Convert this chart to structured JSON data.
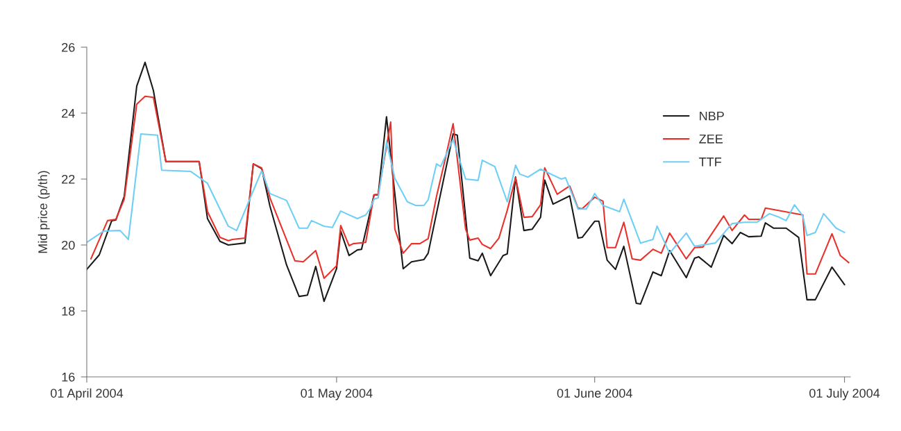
{
  "chart_data": {
    "type": "line",
    "ylabel": "Mid price (p/th)",
    "xlim": [
      "2004-04-01",
      "2004-07-01T17:00"
    ],
    "xticks": [
      {
        "value": "2004-04-01",
        "label": "01 April 2004"
      },
      {
        "value": "2004-05-01",
        "label": "01 May 2004"
      },
      {
        "value": "2004-06-01",
        "label": "01 June 2004"
      },
      {
        "value": "2004-07-01",
        "label": "01 July 2004"
      }
    ],
    "ylim": [
      16,
      26
    ],
    "yticks": [
      16,
      18,
      20,
      22,
      24,
      26
    ],
    "grid": false,
    "legend": "top right",
    "marker": "none",
    "line_style": "solid",
    "series": [
      {
        "name": "NBP",
        "color": "#1a1a1a",
        "x": [
          "2004-04-01",
          "2004-04-02T12:00",
          "2004-04-04",
          "2004-04-04T12:00",
          "2004-04-05T12:00",
          "2004-04-07",
          "2004-04-08",
          "2004-04-09",
          "2004-04-10T12:00",
          "2004-04-14T12:00",
          "2004-04-15T12:00",
          "2004-04-17",
          "2004-04-18",
          "2004-04-20",
          "2004-04-21",
          "2004-04-22",
          "2004-04-23",
          "2004-04-25",
          "2004-04-26T12:00",
          "2004-04-27T12:00",
          "2004-04-28T12:00",
          "2004-04-29T12:00",
          "2004-05-01",
          "2004-05-01T12:00",
          "2004-05-02T12:00",
          "2004-05-03T12:00",
          "2004-05-04",
          "2004-05-05T12:00",
          "2004-05-06",
          "2004-05-07",
          "2004-05-08T12:00",
          "2004-05-09",
          "2004-05-10",
          "2004-05-11T12:00",
          "2004-05-12",
          "2004-05-15",
          "2004-05-15T12:00",
          "2004-05-17",
          "2004-05-18",
          "2004-05-18T12:00",
          "2004-05-19T12:00",
          "2004-05-21",
          "2004-05-21T12:00",
          "2004-05-22T12:00",
          "2004-05-23T12:00",
          "2004-05-24T12:00",
          "2004-05-25T12:00",
          "2004-05-26",
          "2004-05-27",
          "2004-05-29",
          "2004-05-30",
          "2004-05-30T12:00",
          "2004-06-01",
          "2004-06-01T12:00",
          "2004-06-02T12:00",
          "2004-06-03T12:00",
          "2004-06-04T12:00",
          "2004-06-06",
          "2004-06-06T12:00",
          "2004-06-08",
          "2004-06-09",
          "2004-06-10",
          "2004-06-12",
          "2004-06-13",
          "2004-06-13T12:00",
          "2004-06-15",
          "2004-06-16T12:00",
          "2004-06-17T12:00",
          "2004-06-18T12:00",
          "2004-06-19T12:00",
          "2004-06-21",
          "2004-06-21T12:00",
          "2004-06-22T12:00",
          "2004-06-24",
          "2004-06-25T12:00",
          "2004-06-26T12:00",
          "2004-06-27T12:00",
          "2004-06-29T12:00",
          "2004-07-01"
        ],
        "values": [
          19.26,
          19.7,
          20.74,
          20.76,
          21.47,
          24.82,
          25.54,
          24.69,
          22.53,
          22.53,
          20.8,
          20.11,
          20.0,
          20.06,
          22.46,
          22.32,
          21.18,
          19.39,
          18.44,
          18.48,
          19.35,
          18.29,
          19.28,
          20.42,
          19.68,
          19.85,
          19.87,
          21.52,
          21.52,
          23.89,
          20.38,
          19.28,
          19.49,
          19.56,
          19.75,
          23.37,
          23.33,
          19.6,
          19.52,
          19.75,
          19.07,
          19.68,
          19.73,
          22.06,
          20.44,
          20.48,
          20.84,
          21.97,
          21.24,
          21.49,
          20.21,
          20.23,
          20.72,
          20.72,
          19.54,
          19.26,
          19.96,
          18.23,
          18.21,
          19.18,
          19.07,
          19.83,
          19.01,
          19.6,
          19.64,
          19.33,
          20.29,
          20.04,
          20.38,
          20.25,
          20.27,
          20.67,
          20.51,
          20.51,
          20.23,
          18.34,
          18.34,
          19.33,
          18.8
        ]
      },
      {
        "name": "ZEE",
        "color": "#e8312a",
        "x": [
          "2004-04-01T12:00",
          "2004-04-03T12:00",
          "2004-04-04T12:00",
          "2004-04-05T12:00",
          "2004-04-07",
          "2004-04-08",
          "2004-04-09",
          "2004-04-10T12:00",
          "2004-04-14T12:00",
          "2004-04-15T12:00",
          "2004-04-17",
          "2004-04-18",
          "2004-04-18T12:00",
          "2004-04-20",
          "2004-04-21",
          "2004-04-22",
          "2004-04-23",
          "2004-04-26",
          "2004-04-27",
          "2004-04-28T12:00",
          "2004-04-29T12:00",
          "2004-05-01",
          "2004-05-01T12:00",
          "2004-05-02T12:00",
          "2004-05-03",
          "2004-05-04T12:00",
          "2004-05-05T12:00",
          "2004-05-06",
          "2004-05-07T12:00",
          "2004-05-08",
          "2004-05-09",
          "2004-05-10",
          "2004-05-11",
          "2004-05-12",
          "2004-05-13",
          "2004-05-14",
          "2004-05-15",
          "2004-05-16T12:00",
          "2004-05-17",
          "2004-05-18",
          "2004-05-18T12:00",
          "2004-05-19T12:00",
          "2004-05-20T12:00",
          "2004-05-21T12:00",
          "2004-05-22T12:00",
          "2004-05-23T12:00",
          "2004-05-24T12:00",
          "2004-05-25T12:00",
          "2004-05-26",
          "2004-05-27T12:00",
          "2004-05-29",
          "2004-05-30",
          "2004-05-30T12:00",
          "2004-06-01",
          "2004-06-02",
          "2004-06-02T12:00",
          "2004-06-03T12:00",
          "2004-06-04T12:00",
          "2004-06-05T12:00",
          "2004-06-06T12:00",
          "2004-06-08",
          "2004-06-09",
          "2004-06-10",
          "2004-06-12",
          "2004-06-13",
          "2004-06-14",
          "2004-06-16T12:00",
          "2004-06-17T12:00",
          "2004-06-19",
          "2004-06-19T12:00",
          "2004-06-21",
          "2004-06-21T12:00",
          "2004-06-26",
          "2004-06-26T12:00",
          "2004-06-27T12:00",
          "2004-06-29T12:00",
          "2004-06-30T12:00",
          "2004-07-01T12:00"
        ],
        "values": [
          19.58,
          20.74,
          20.78,
          21.39,
          24.27,
          24.51,
          24.48,
          22.53,
          22.53,
          21.01,
          20.23,
          20.13,
          20.17,
          20.21,
          22.46,
          22.34,
          21.43,
          19.52,
          19.49,
          19.83,
          18.99,
          19.37,
          20.59,
          19.98,
          20.04,
          20.08,
          21.52,
          21.54,
          23.73,
          20.48,
          19.75,
          20.04,
          20.04,
          20.19,
          21.47,
          22.55,
          23.68,
          20.48,
          20.15,
          20.21,
          20.02,
          19.89,
          20.21,
          21.05,
          22.04,
          20.84,
          20.86,
          21.22,
          22.34,
          21.54,
          21.79,
          21.12,
          21.1,
          21.45,
          21.33,
          19.92,
          19.92,
          20.69,
          19.58,
          19.54,
          19.87,
          19.75,
          20.36,
          19.58,
          19.92,
          19.94,
          20.88,
          20.44,
          20.91,
          20.78,
          20.78,
          21.12,
          20.91,
          19.12,
          19.12,
          20.34,
          19.68,
          19.47
        ]
      },
      {
        "name": "TTF",
        "color": "#6ecff6",
        "x": [
          "2004-04-01",
          "2004-04-03",
          "2004-04-05",
          "2004-04-06",
          "2004-04-07T12:00",
          "2004-04-09T12:00",
          "2004-04-10",
          "2004-04-13T12:00",
          "2004-04-15T12:00",
          "2004-04-18",
          "2004-04-19",
          "2004-04-22",
          "2004-04-23",
          "2004-04-25",
          "2004-04-26T12:00",
          "2004-04-27T12:00",
          "2004-04-28",
          "2004-04-29T12:00",
          "2004-04-30T12:00",
          "2004-05-01T12:00",
          "2004-05-03T12:00",
          "2004-05-04T12:00",
          "2004-05-05",
          "2004-05-05T12:00",
          "2004-05-06",
          "2004-05-07",
          "2004-05-08",
          "2004-05-09T12:00",
          "2004-05-10T12:00",
          "2004-05-11T12:00",
          "2004-05-12",
          "2004-05-13",
          "2004-05-13T12:00",
          "2004-05-15",
          "2004-05-16T12:00",
          "2004-05-18",
          "2004-05-18T12:00",
          "2004-05-20",
          "2004-05-21T12:00",
          "2004-05-22T12:00",
          "2004-05-23",
          "2004-05-24",
          "2004-05-25T12:00",
          "2004-05-28",
          "2004-05-28T12:00",
          "2004-05-30",
          "2004-05-31",
          "2004-06-01",
          "2004-06-02",
          "2004-06-04",
          "2004-06-04T12:00",
          "2004-06-06T12:00",
          "2004-06-08",
          "2004-06-08T12:00",
          "2004-06-10",
          "2004-06-12",
          "2004-06-13",
          "2004-06-15T12:00",
          "2004-06-17T12:00",
          "2004-06-19",
          "2004-06-20T12:00",
          "2004-06-22",
          "2004-06-23",
          "2004-06-24",
          "2004-06-25",
          "2004-06-26",
          "2004-06-26T12:00",
          "2004-06-27T12:00",
          "2004-06-28T12:00",
          "2004-06-30",
          "2004-07-01"
        ],
        "values": [
          20.08,
          20.42,
          20.44,
          20.17,
          23.37,
          23.33,
          22.27,
          22.23,
          21.87,
          20.57,
          20.44,
          22.25,
          21.56,
          21.35,
          20.51,
          20.51,
          20.74,
          20.57,
          20.53,
          21.03,
          20.8,
          20.91,
          21.09,
          21.39,
          21.43,
          23.12,
          22.02,
          21.31,
          21.2,
          21.2,
          21.37,
          22.46,
          22.38,
          23.2,
          22.0,
          21.96,
          22.57,
          22.38,
          21.31,
          22.42,
          22.15,
          22.06,
          22.3,
          22.0,
          22.04,
          21.09,
          21.09,
          21.56,
          21.2,
          21.01,
          21.39,
          20.06,
          20.17,
          20.57,
          19.75,
          20.36,
          19.96,
          20.06,
          20.65,
          20.69,
          20.69,
          20.95,
          20.86,
          20.74,
          21.22,
          20.88,
          20.29,
          20.38,
          20.95,
          20.51,
          20.38
        ]
      }
    ]
  }
}
